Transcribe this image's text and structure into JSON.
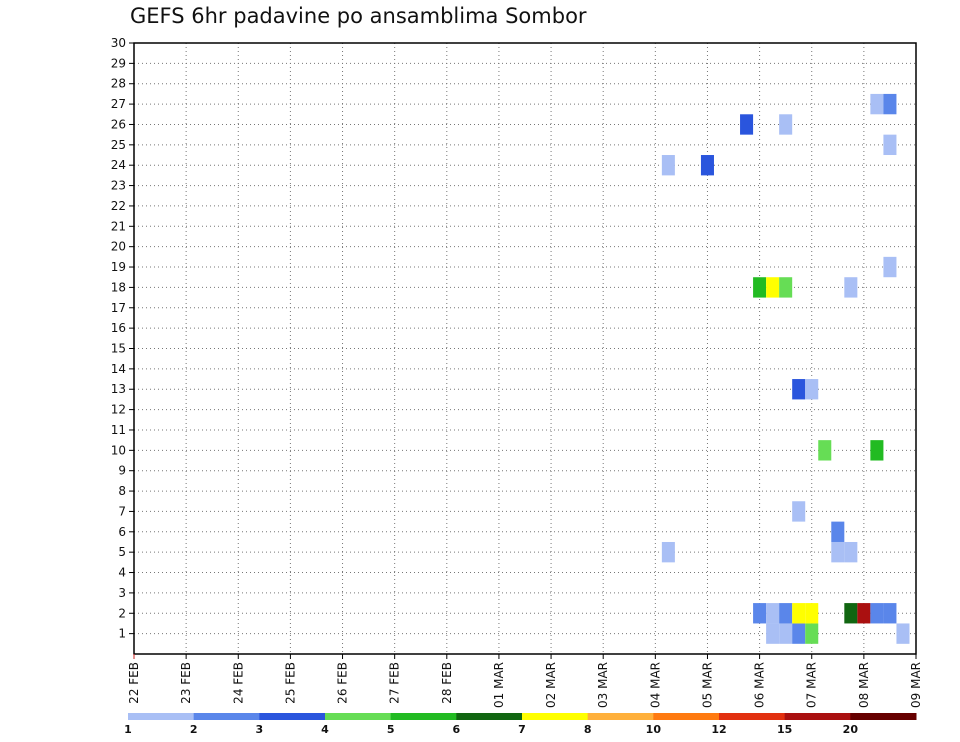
{
  "chart_data": {
    "type": "heatmap",
    "title": "GEFS 6hr padavine po ansamblima Sombor",
    "xlabel": "",
    "ylabel": "",
    "x_ticks": [
      "22 FEB",
      "23 FEB",
      "24 FEB",
      "25 FEB",
      "26 FEB",
      "27 FEB",
      "28 FEB",
      "01 MAR",
      "02 MAR",
      "03 MAR",
      "04 MAR",
      "05 MAR",
      "06 MAR",
      "07 MAR",
      "08 MAR",
      "09 MAR"
    ],
    "y_ticks": [
      1,
      2,
      3,
      4,
      5,
      6,
      7,
      8,
      9,
      10,
      11,
      12,
      13,
      14,
      15,
      16,
      17,
      18,
      19,
      20,
      21,
      22,
      23,
      24,
      25,
      26,
      27,
      28,
      29,
      30
    ],
    "xlim_days": [
      0,
      15
    ],
    "ylim": [
      0,
      30
    ],
    "grid": true,
    "colorbar": {
      "labels": [
        "1",
        "2",
        "3",
        "4",
        "5",
        "6",
        "7",
        "8",
        "10",
        "12",
        "15",
        "20"
      ],
      "colors": [
        "#a9bff5",
        "#5a86ea",
        "#2a55dd",
        "#66dd55",
        "#22bb22",
        "#116611",
        "#ffff00",
        "#ffb03b",
        "#ff7a10",
        "#e23010",
        "#aa1010",
        "#660000"
      ]
    },
    "cells": [
      {
        "day": 12.25,
        "member": 1,
        "color": "#a9bff5"
      },
      {
        "day": 12.5,
        "member": 1,
        "color": "#a9bff5"
      },
      {
        "day": 12.75,
        "member": 1,
        "color": "#5a86ea"
      },
      {
        "day": 13.0,
        "member": 1,
        "color": "#66dd55"
      },
      {
        "day": 14.75,
        "member": 1,
        "color": "#a9bff5"
      },
      {
        "day": 12.0,
        "member": 2,
        "color": "#5a86ea"
      },
      {
        "day": 12.25,
        "member": 2,
        "color": "#a9bff5"
      },
      {
        "day": 12.5,
        "member": 2,
        "color": "#5a86ea"
      },
      {
        "day": 12.75,
        "member": 2,
        "color": "#ffff00"
      },
      {
        "day": 13.0,
        "member": 2,
        "color": "#ffff00"
      },
      {
        "day": 13.75,
        "member": 2,
        "color": "#116611"
      },
      {
        "day": 14.0,
        "member": 2,
        "color": "#aa1010"
      },
      {
        "day": 14.25,
        "member": 2,
        "color": "#5a86ea"
      },
      {
        "day": 14.5,
        "member": 2,
        "color": "#5a86ea"
      },
      {
        "day": 10.25,
        "member": 5,
        "color": "#a9bff5"
      },
      {
        "day": 13.5,
        "member": 5,
        "color": "#a9bff5"
      },
      {
        "day": 13.75,
        "member": 5,
        "color": "#a9bff5"
      },
      {
        "day": 13.5,
        "member": 6,
        "color": "#5a86ea"
      },
      {
        "day": 12.75,
        "member": 7,
        "color": "#a9bff5"
      },
      {
        "day": 13.25,
        "member": 10,
        "color": "#66dd55"
      },
      {
        "day": 14.25,
        "member": 10,
        "color": "#22bb22"
      },
      {
        "day": 12.75,
        "member": 13,
        "color": "#2a55dd"
      },
      {
        "day": 13.0,
        "member": 13,
        "color": "#a9bff5"
      },
      {
        "day": 12.0,
        "member": 18,
        "color": "#22bb22"
      },
      {
        "day": 12.25,
        "member": 18,
        "color": "#ffff00"
      },
      {
        "day": 12.5,
        "member": 18,
        "color": "#66dd55"
      },
      {
        "day": 13.75,
        "member": 18,
        "color": "#a9bff5"
      },
      {
        "day": 14.5,
        "member": 19,
        "color": "#a9bff5"
      },
      {
        "day": 10.25,
        "member": 24,
        "color": "#a9bff5"
      },
      {
        "day": 11.0,
        "member": 24,
        "color": "#2a55dd"
      },
      {
        "day": 14.5,
        "member": 25,
        "color": "#a9bff5"
      },
      {
        "day": 11.75,
        "member": 26,
        "color": "#2a55dd"
      },
      {
        "day": 12.5,
        "member": 26,
        "color": "#a9bff5"
      },
      {
        "day": 14.25,
        "member": 27,
        "color": "#a9bff5"
      },
      {
        "day": 14.5,
        "member": 27,
        "color": "#5a86ea"
      }
    ]
  }
}
